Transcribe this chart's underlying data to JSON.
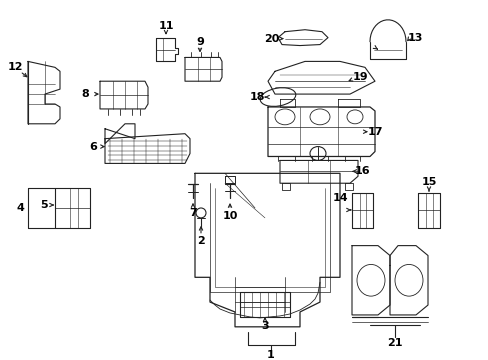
{
  "background_color": "#ffffff",
  "line_color": "#222222",
  "text_color": "#000000",
  "figsize": [
    4.89,
    3.6
  ],
  "dpi": 100
}
